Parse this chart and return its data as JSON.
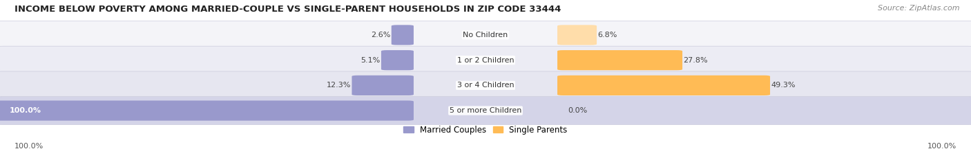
{
  "title": "INCOME BELOW POVERTY AMONG MARRIED-COUPLE VS SINGLE-PARENT HOUSEHOLDS IN ZIP CODE 33444",
  "source": "Source: ZipAtlas.com",
  "categories": [
    "No Children",
    "1 or 2 Children",
    "3 or 4 Children",
    "5 or more Children"
  ],
  "married_values": [
    2.6,
    5.1,
    12.3,
    100.0
  ],
  "single_values": [
    6.8,
    27.8,
    49.3,
    0.0
  ],
  "married_color": "#9999cc",
  "single_color": "#ffbb55",
  "single_color_light": "#ffddaa",
  "row_bg_colors": [
    "#f0f0f7",
    "#e8e8f2",
    "#e0e0ee",
    "#d8d8ee"
  ],
  "row_outline_color": "#ccccdd",
  "max_value": 100.0,
  "title_fontsize": 9.5,
  "label_fontsize": 8.0,
  "value_fontsize": 8.0,
  "tick_fontsize": 8.0,
  "legend_fontsize": 8.5,
  "source_fontsize": 8.0,
  "axis_left_label": "100.0%",
  "axis_right_label": "100.0%",
  "background_color": "#ffffff"
}
